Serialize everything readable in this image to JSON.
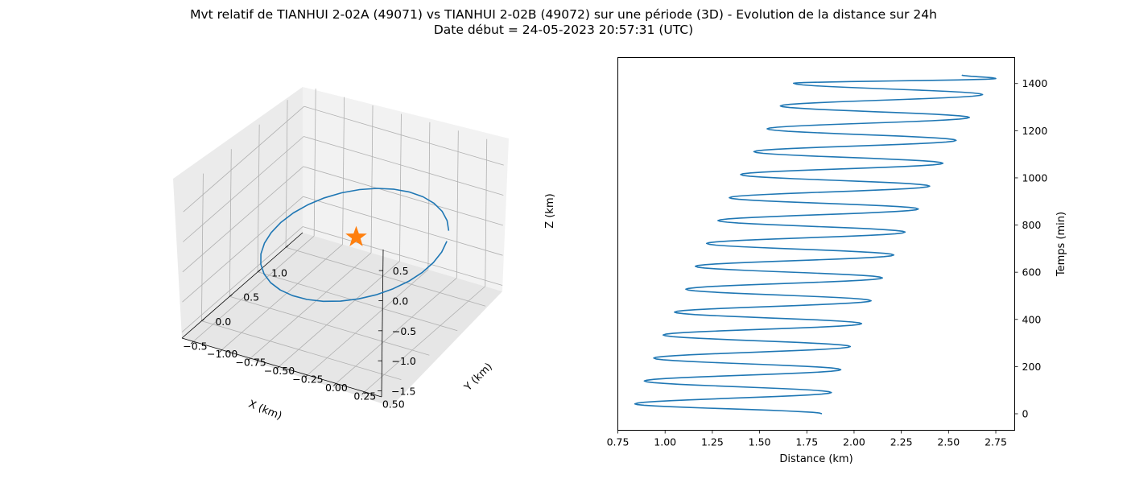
{
  "figure": {
    "title_line1": "Mvt relatif de TIANHUI 2-02A (49071) vs TIANHUI 2-02B (49072) sur une période (3D) - Evolution de la distance sur 24h",
    "title_line2": "Date début = 24-05-2023 20:57:31 (UTC)",
    "colors": {
      "series": "#1f77b4",
      "marker": "#ff7f0e",
      "axes": "#000000",
      "grid": "#b0b0b0"
    }
  },
  "chart_data": [
    {
      "type": "line",
      "projection": "3d",
      "xlabel": "X (km)",
      "ylabel": "Y (km)",
      "zlabel": "Z (km)",
      "xlim": [
        -0.85,
        1.3
      ],
      "ylim": [
        -1.1,
        0.65
      ],
      "zlim": [
        -1.6,
        0.85
      ],
      "xticks": [
        "−0.5",
        "0.0",
        "0.5",
        "1.0"
      ],
      "yticks": [
        "−1.00",
        "−0.75",
        "−0.50",
        "−0.25",
        "0.00",
        "0.25",
        "0.50"
      ],
      "zticks": [
        "−1.5",
        "−1.0",
        "−0.5",
        "0.0",
        "0.5"
      ],
      "grid": true,
      "marker": {
        "symbol": "star",
        "x": 0.0,
        "y": 0.0,
        "z": 0.0
      },
      "orbit": {
        "x_center": 0.26,
        "x_amp": 0.64,
        "y_center": -0.14,
        "y_amp": 0.51,
        "z_center": -0.42,
        "z_amp": 0.91,
        "points": 33
      }
    },
    {
      "type": "line",
      "xlabel": "Distance (km)",
      "ylabel": "Temps (min)",
      "xlim": [
        0.75,
        2.85
      ],
      "ylim": [
        -70,
        1510
      ],
      "xticks": [
        0.75,
        1.0,
        1.25,
        1.5,
        1.75,
        2.0,
        2.25,
        2.5,
        2.75
      ],
      "xticklabels": [
        "0.75",
        "1.00",
        "1.25",
        "1.50",
        "1.75",
        "2.00",
        "2.25",
        "2.50",
        "2.75"
      ],
      "yticks": [
        0,
        200,
        400,
        600,
        800,
        1000,
        1200,
        1400
      ],
      "yticklabels": [
        "0",
        "200",
        "400",
        "600",
        "800",
        "1000",
        "1200",
        "1400"
      ],
      "series": [
        {
          "start": 1.83,
          "end": 2.57,
          "t_end": 1436,
          "period_min": 94.5,
          "minima": [
            [
              0.84,
              42
            ],
            [
              0.89,
              139
            ],
            [
              0.94,
              236
            ],
            [
              0.99,
              334
            ],
            [
              1.05,
              431
            ],
            [
              1.11,
              528
            ],
            [
              1.16,
              625
            ],
            [
              1.22,
              722
            ],
            [
              1.28,
              819
            ],
            [
              1.34,
              916
            ],
            [
              1.4,
              1014
            ],
            [
              1.47,
              1111
            ],
            [
              1.54,
              1208
            ],
            [
              1.61,
              1305
            ],
            [
              1.68,
              1401
            ]
          ],
          "maxima": [
            [
              1.88,
              90
            ],
            [
              1.93,
              187
            ],
            [
              1.98,
              285
            ],
            [
              2.04,
              382
            ],
            [
              2.09,
              479
            ],
            [
              2.15,
              576
            ],
            [
              2.21,
              673
            ],
            [
              2.27,
              770
            ],
            [
              2.34,
              868
            ],
            [
              2.4,
              965
            ],
            [
              2.47,
              1062
            ],
            [
              2.54,
              1159
            ],
            [
              2.61,
              1256
            ],
            [
              2.68,
              1353
            ],
            [
              2.75,
              1421
            ]
          ]
        }
      ]
    }
  ]
}
